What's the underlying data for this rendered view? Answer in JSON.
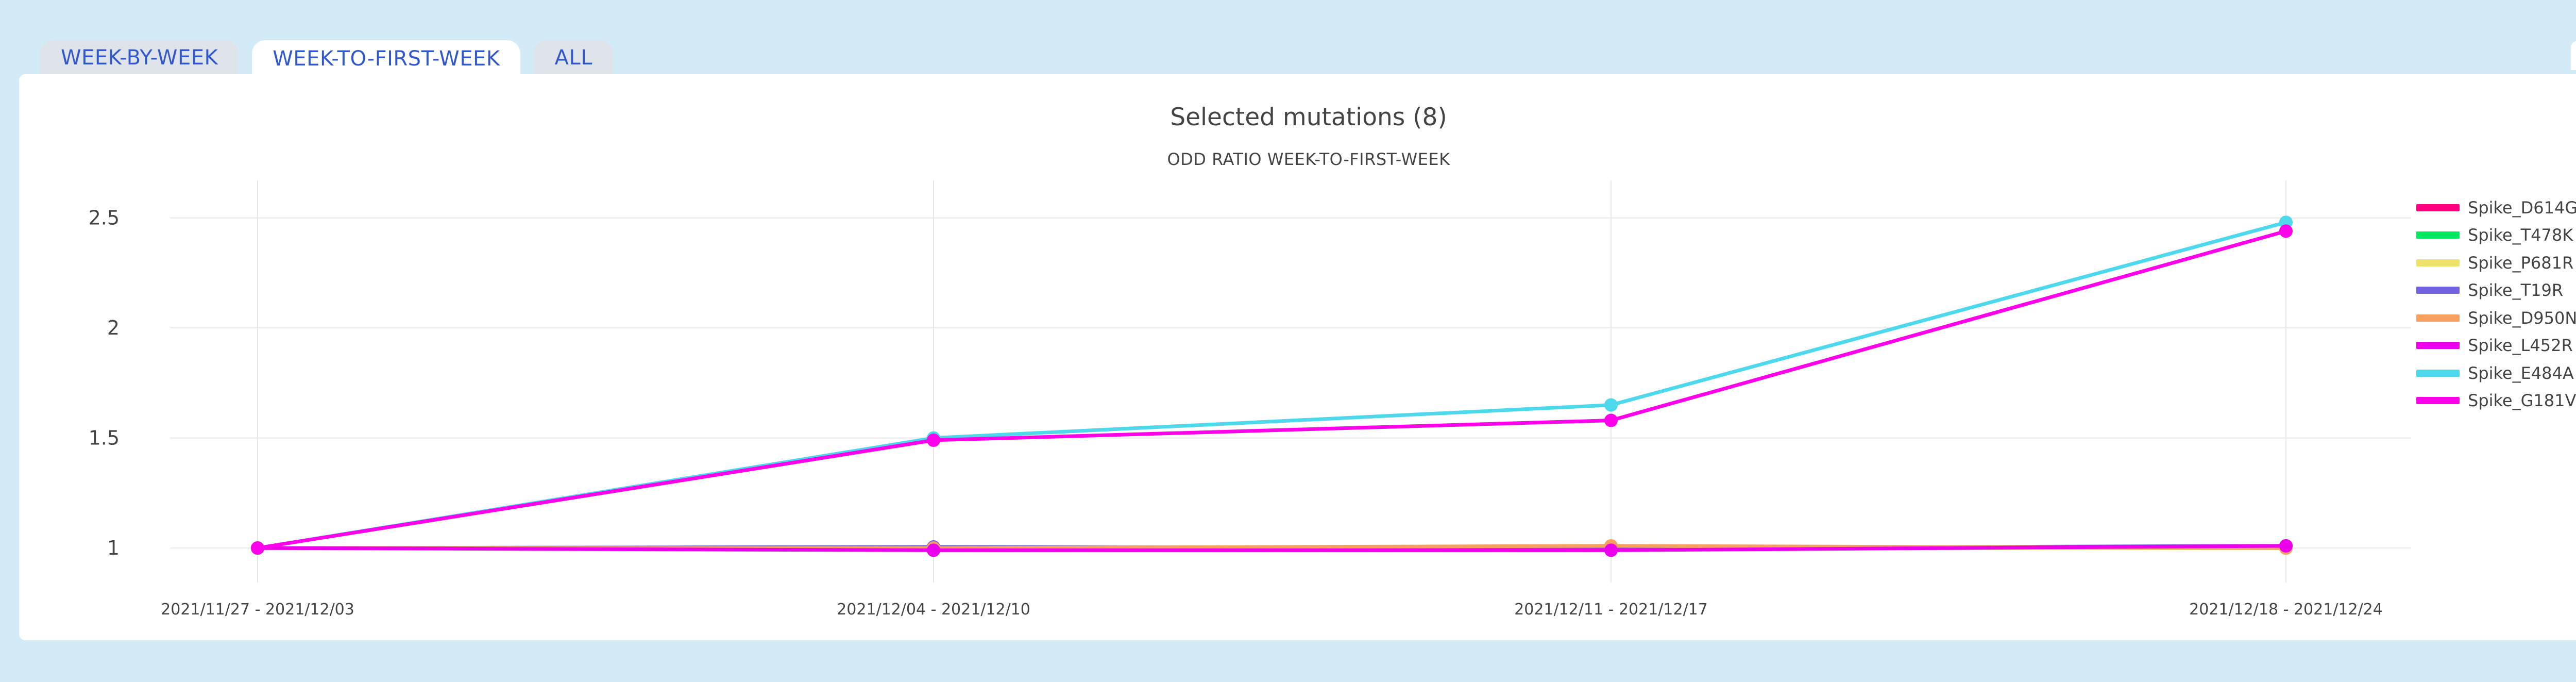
{
  "tabs": [
    {
      "label": "WEEK-BY-WEEK",
      "active": false
    },
    {
      "label": "WEEK-TO-FIRST-WEEK",
      "active": true
    },
    {
      "label": "ALL",
      "active": false
    }
  ],
  "colors": {
    "background": "#d3ebf7",
    "tab_text": "#3358c9",
    "grid": "#e8e8e8"
  },
  "collapse_icon": "collapse-arrows-icon",
  "chart_data": {
    "type": "line",
    "title": "Selected mutations (8)",
    "subtitle": "ODD RATIO WEEK-TO-FIRST-WEEK",
    "categories": [
      "2021/11/27 - 2021/12/03",
      "2021/12/04 - 2021/12/10",
      "2021/12/11 - 2021/12/17",
      "2021/12/18 - 2021/12/24"
    ],
    "ylim": [
      0.82,
      2.6
    ],
    "yticks": [
      1,
      1.5,
      2,
      2.5
    ],
    "ytick_labels": [
      "1",
      "1.5",
      "2",
      "2.5"
    ],
    "grid": true,
    "legend_position": "right",
    "series": [
      {
        "name": "Spike_D614G",
        "color": "#ff0080",
        "values": [
          1,
          1.0,
          1.0,
          1.0
        ]
      },
      {
        "name": "Spike_T478K",
        "color": "#00e85e",
        "values": [
          1,
          1.0,
          1.0,
          1.0
        ]
      },
      {
        "name": "Spike_P681R",
        "color": "#eee36a",
        "values": [
          1,
          1.0,
          1.0,
          1.0
        ]
      },
      {
        "name": "Spike_T19R",
        "color": "#7162e0",
        "values": [
          1,
          1.005,
          1.0,
          1.01
        ]
      },
      {
        "name": "Spike_D950N",
        "color": "#f8a05f",
        "values": [
          1,
          1.0,
          1.01,
          1.0
        ]
      },
      {
        "name": "Spike_L452R",
        "color": "#ec00ec",
        "values": [
          1,
          0.99,
          0.99,
          1.01
        ]
      },
      {
        "name": "Spike_E484A",
        "color": "#4dd8ec",
        "values": [
          1,
          1.5,
          1.65,
          2.48
        ]
      },
      {
        "name": "Spike_G181V",
        "color": "#ff00ea",
        "values": [
          1,
          1.49,
          1.58,
          2.44
        ]
      }
    ]
  }
}
